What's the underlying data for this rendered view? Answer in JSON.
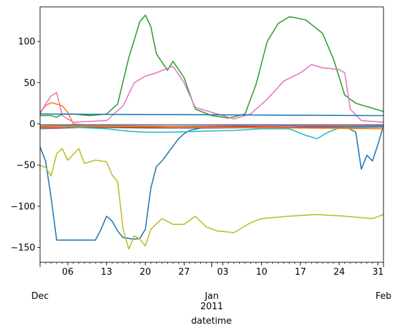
{
  "chart_data": {
    "type": "line",
    "title": "",
    "xlabel": "datetime",
    "ylabel": "",
    "ylim": [
      -168,
      142
    ],
    "xlim": [
      "2010-12-01",
      "2011-02-01"
    ],
    "grid": false,
    "legend": "none",
    "y_ticks": [
      {
        "value": 100,
        "label": "100"
      },
      {
        "value": 50,
        "label": "50"
      },
      {
        "value": 0,
        "label": "0"
      },
      {
        "value": -50,
        "label": "−50"
      },
      {
        "value": -100,
        "label": "−100"
      },
      {
        "value": -150,
        "label": "−150"
      }
    ],
    "x_major_ticks": [
      {
        "date": "2010-12-06",
        "label": "06"
      },
      {
        "date": "2010-12-13",
        "label": "13"
      },
      {
        "date": "2010-12-20",
        "label": "20"
      },
      {
        "date": "2010-12-27",
        "label": "27"
      },
      {
        "date": "2011-01-03",
        "label": "03"
      },
      {
        "date": "2011-01-10",
        "label": "10"
      },
      {
        "date": "2011-01-17",
        "label": "17"
      },
      {
        "date": "2011-01-24",
        "label": "24"
      },
      {
        "date": "2011-01-31",
        "label": "31"
      }
    ],
    "x_month_labels": [
      {
        "date": "2010-12-01",
        "label": "Dec"
      },
      {
        "date": "2011-01-01",
        "label": "Jan",
        "sublabel": "2011"
      },
      {
        "date": "2011-02-01",
        "label": "Feb"
      }
    ],
    "series": [
      {
        "color": "#1f77b4",
        "points": [
          [
            "2010-12-01",
            -28
          ],
          [
            "2010-12-02",
            -45
          ],
          [
            "2010-12-03",
            -90
          ],
          [
            "2010-12-04",
            -141
          ],
          [
            "2010-12-08",
            -141
          ],
          [
            "2010-12-11",
            -141
          ],
          [
            "2010-12-12",
            -128
          ],
          [
            "2010-12-13",
            -112
          ],
          [
            "2010-12-14",
            -118
          ],
          [
            "2010-12-15",
            -130
          ],
          [
            "2010-12-16",
            -138
          ],
          [
            "2010-12-18",
            -140
          ],
          [
            "2010-12-19",
            -139
          ],
          [
            "2010-12-20",
            -128
          ],
          [
            "2010-12-21",
            -78
          ],
          [
            "2010-12-22",
            -52
          ],
          [
            "2010-12-23",
            -45
          ],
          [
            "2010-12-24",
            -36
          ],
          [
            "2010-12-25",
            -27
          ],
          [
            "2010-12-26",
            -18
          ],
          [
            "2010-12-27",
            -12
          ],
          [
            "2010-12-28",
            -8
          ],
          [
            "2010-12-30",
            -5
          ],
          [
            "2011-01-03",
            -4
          ],
          [
            "2011-01-17",
            -4
          ],
          [
            "2011-01-25",
            -3
          ],
          [
            "2011-01-27",
            -10
          ],
          [
            "2011-01-28",
            -55
          ],
          [
            "2011-01-29",
            -38
          ],
          [
            "2011-01-30",
            -45
          ],
          [
            "2011-01-31",
            -25
          ],
          [
            "2011-02-01",
            -2
          ]
        ]
      },
      {
        "color": "#ff7f0e",
        "points": [
          [
            "2010-12-01",
            14
          ],
          [
            "2010-12-02",
            22
          ],
          [
            "2010-12-03",
            26
          ],
          [
            "2010-12-04",
            24
          ],
          [
            "2010-12-05",
            22
          ],
          [
            "2010-12-06",
            14
          ],
          [
            "2010-12-07",
            0
          ],
          [
            "2010-12-09",
            -1
          ],
          [
            "2010-12-20",
            -1
          ],
          [
            "2011-01-10",
            -1
          ],
          [
            "2011-02-01",
            -2
          ]
        ]
      },
      {
        "color": "#2ca02c",
        "points": [
          [
            "2010-12-01",
            10
          ],
          [
            "2010-12-03",
            10
          ],
          [
            "2010-12-04",
            8
          ],
          [
            "2010-12-05",
            12
          ],
          [
            "2010-12-07",
            12
          ],
          [
            "2010-12-10",
            10
          ],
          [
            "2010-12-13",
            12
          ],
          [
            "2010-12-15",
            24
          ],
          [
            "2010-12-17",
            80
          ],
          [
            "2010-12-19",
            124
          ],
          [
            "2010-12-20",
            132
          ],
          [
            "2010-12-21",
            118
          ],
          [
            "2010-12-22",
            85
          ],
          [
            "2010-12-24",
            65
          ],
          [
            "2010-12-25",
            76
          ],
          [
            "2010-12-27",
            56
          ],
          [
            "2010-12-29",
            18
          ],
          [
            "2011-01-01",
            10
          ],
          [
            "2011-01-04",
            7
          ],
          [
            "2011-01-07",
            12
          ],
          [
            "2011-01-09",
            48
          ],
          [
            "2011-01-11",
            100
          ],
          [
            "2011-01-13",
            122
          ],
          [
            "2011-01-15",
            130
          ],
          [
            "2011-01-16",
            129
          ],
          [
            "2011-01-18",
            126
          ],
          [
            "2011-01-21",
            110
          ],
          [
            "2011-01-23",
            78
          ],
          [
            "2011-01-25",
            35
          ],
          [
            "2011-01-27",
            25
          ],
          [
            "2011-02-01",
            15
          ]
        ]
      },
      {
        "color": "#d62728",
        "points": [
          [
            "2010-12-01",
            -4
          ],
          [
            "2010-12-10",
            -3
          ],
          [
            "2010-12-20",
            -4
          ],
          [
            "2011-01-01",
            -3
          ],
          [
            "2011-01-15",
            -4
          ],
          [
            "2011-02-01",
            -3
          ]
        ]
      },
      {
        "color": "#9467bd",
        "points": [
          [
            "2010-12-01",
            -2
          ],
          [
            "2010-12-12",
            -2
          ],
          [
            "2010-12-25",
            -3
          ],
          [
            "2011-01-10",
            -2
          ],
          [
            "2011-01-25",
            -3
          ],
          [
            "2011-02-01",
            -2
          ]
        ]
      },
      {
        "color": "#8c564b",
        "points": [
          [
            "2010-12-01",
            -6
          ],
          [
            "2010-12-10",
            -4
          ],
          [
            "2010-12-20",
            -5
          ],
          [
            "2011-01-01",
            -5
          ],
          [
            "2011-01-20",
            -4
          ],
          [
            "2011-02-01",
            -4
          ]
        ]
      },
      {
        "color": "#e377c2",
        "points": [
          [
            "2010-12-01",
            12
          ],
          [
            "2010-12-02",
            24
          ],
          [
            "2010-12-03",
            34
          ],
          [
            "2010-12-04",
            38
          ],
          [
            "2010-12-05",
            10
          ],
          [
            "2010-12-07",
            2
          ],
          [
            "2010-12-13",
            4
          ],
          [
            "2010-12-16",
            22
          ],
          [
            "2010-12-18",
            50
          ],
          [
            "2010-12-20",
            58
          ],
          [
            "2010-12-22",
            62
          ],
          [
            "2010-12-25",
            70
          ],
          [
            "2010-12-27",
            50
          ],
          [
            "2010-12-29",
            20
          ],
          [
            "2011-01-02",
            12
          ],
          [
            "2011-01-05",
            6
          ],
          [
            "2011-01-08",
            12
          ],
          [
            "2011-01-11",
            30
          ],
          [
            "2011-01-14",
            52
          ],
          [
            "2011-01-17",
            62
          ],
          [
            "2011-01-19",
            72
          ],
          [
            "2011-01-21",
            68
          ],
          [
            "2011-01-24",
            66
          ],
          [
            "2011-01-25",
            62
          ],
          [
            "2011-01-26",
            18
          ],
          [
            "2011-01-28",
            4
          ],
          [
            "2011-02-01",
            2
          ]
        ]
      },
      {
        "color": "#7f7f7f",
        "points": [
          [
            "2010-12-01",
            -1
          ],
          [
            "2011-02-01",
            -1
          ]
        ]
      },
      {
        "color": "#bcbd22",
        "points": [
          [
            "2010-12-01",
            -50
          ],
          [
            "2010-12-02",
            -53
          ],
          [
            "2010-12-03",
            -63
          ],
          [
            "2010-12-04",
            -36
          ],
          [
            "2010-12-05",
            -30
          ],
          [
            "2010-12-06",
            -44
          ],
          [
            "2010-12-08",
            -30
          ],
          [
            "2010-12-09",
            -48
          ],
          [
            "2010-12-11",
            -44
          ],
          [
            "2010-12-13",
            -46
          ],
          [
            "2010-12-14",
            -62
          ],
          [
            "2010-12-15",
            -70
          ],
          [
            "2010-12-16",
            -128
          ],
          [
            "2010-12-17",
            -152
          ],
          [
            "2010-12-18",
            -136
          ],
          [
            "2010-12-19",
            -140
          ],
          [
            "2010-12-20",
            -148
          ],
          [
            "2010-12-21",
            -128
          ],
          [
            "2010-12-23",
            -115
          ],
          [
            "2010-12-25",
            -122
          ],
          [
            "2010-12-27",
            -122
          ],
          [
            "2010-12-29",
            -112
          ],
          [
            "2010-12-31",
            -125
          ],
          [
            "2011-01-02",
            -130
          ],
          [
            "2011-01-05",
            -132
          ],
          [
            "2011-01-08",
            -120
          ],
          [
            "2011-01-10",
            -115
          ],
          [
            "2011-01-15",
            -112
          ],
          [
            "2011-01-20",
            -110
          ],
          [
            "2011-01-25",
            -112
          ],
          [
            "2011-01-30",
            -115
          ],
          [
            "2011-02-01",
            -110
          ]
        ]
      },
      {
        "color": "#17becf",
        "points": [
          [
            "2010-12-01",
            -2
          ],
          [
            "2010-12-07",
            -4
          ],
          [
            "2010-12-13",
            -6
          ],
          [
            "2010-12-17",
            -9
          ],
          [
            "2010-12-20",
            -10
          ],
          [
            "2010-12-25",
            -10
          ],
          [
            "2010-12-30",
            -9
          ],
          [
            "2011-01-05",
            -8
          ],
          [
            "2011-01-10",
            -6
          ],
          [
            "2011-01-15",
            -6
          ],
          [
            "2011-01-18",
            -14
          ],
          [
            "2011-01-20",
            -18
          ],
          [
            "2011-01-22",
            -10
          ],
          [
            "2011-01-24",
            -5
          ],
          [
            "2011-01-31",
            -4
          ],
          [
            "2011-02-01",
            -4
          ]
        ]
      },
      {
        "color": "#1f77b4",
        "points": [
          [
            "2010-12-01",
            12
          ],
          [
            "2011-02-01",
            10
          ]
        ]
      },
      {
        "color": "#ff7f0e",
        "points": [
          [
            "2010-12-01",
            -3
          ],
          [
            "2010-12-15",
            -3
          ],
          [
            "2011-01-01",
            -4
          ],
          [
            "2011-01-15",
            -5
          ],
          [
            "2011-02-01",
            -6
          ]
        ]
      }
    ]
  }
}
